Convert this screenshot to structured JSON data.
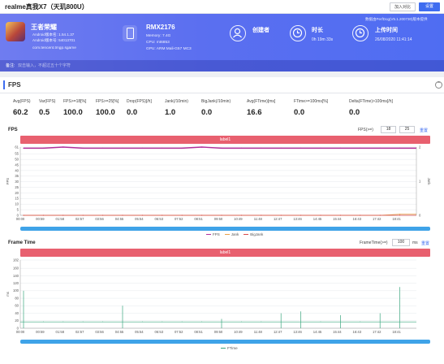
{
  "header": {
    "title": "realme真我X7（天玑800U）",
    "add_compare": "加入对比",
    "settings": "设置"
  },
  "app": {
    "name": "王者荣耀",
    "android_version": "Android版本名: 1.54.1.37",
    "android_code": "Android版本号: 54013701",
    "package": "com.tencent.tmgp.sgame"
  },
  "device": {
    "model": "RMX2176",
    "memory": "Memory: 7.4G",
    "cpu": "CPU: mt6853",
    "gpu": "GPU: ARM Mali-G57 MC3"
  },
  "creator": {
    "title": "创建者"
  },
  "duration": {
    "title": "时长",
    "value": "0h 19m 33s"
  },
  "upload": {
    "title": "上传时间",
    "value": "26/08/2020 11:41:14"
  },
  "report_version": "数据由PerfDog(V5.1.200730)版本提供",
  "remark": {
    "label": "备注:",
    "placeholder": "双击输入，不超过五十个字符"
  },
  "section": {
    "title": "FPS"
  },
  "metrics": [
    {
      "label": "Avg(FPS)",
      "value": "60.2"
    },
    {
      "label": "Var(FPS)",
      "value": "0.5"
    },
    {
      "label": "FPS>=18[%]",
      "value": "100.0"
    },
    {
      "label": "FPS>=25[%]",
      "value": "100.0"
    },
    {
      "label": "Drop(FPS)[/h]",
      "value": "0.0"
    },
    {
      "label": "Jank(/10min)",
      "value": "1.0"
    },
    {
      "label": "BigJank(/10min)",
      "value": "0.0"
    },
    {
      "label": "Avg(FTime)[ms]",
      "value": "16.6"
    },
    {
      "label": "FTime>=100ms[%]",
      "value": "0.0"
    },
    {
      "label": "Delta(FTime)>100ms[/h]",
      "value": "0.0"
    }
  ],
  "fps_chart": {
    "title": "FPS",
    "threshold_label": "FPS(>=)",
    "threshold_1": "18",
    "threshold_2": "25",
    "reset": "重置",
    "label_bar": "label1",
    "y_axis_label": "FPS",
    "y2_axis_label": "Jank",
    "legend": [
      "FPS",
      "Jank",
      "BigJank"
    ],
    "colors": {
      "fps": "#b0309c",
      "jank": "#e7a04a",
      "bigjank": "#d84a4a"
    }
  },
  "ft_chart": {
    "title": "Frame Time",
    "threshold_label": "FrameTime(>=)",
    "threshold_value": "100",
    "threshold_unit": "ms",
    "reset": "重置",
    "label_bar": "label1",
    "y_axis_label": "ms",
    "legend": [
      "FTime"
    ],
    "colors": {
      "ftime": "#3aa57e"
    }
  },
  "chart_data": [
    {
      "type": "line",
      "title": "FPS",
      "ylabel": "FPS",
      "ylim": [
        0,
        61
      ],
      "y_ticks": [
        0,
        5,
        10,
        15,
        20,
        25,
        30,
        35,
        40,
        45,
        50,
        55,
        61
      ],
      "y2label": "Jank",
      "y2lim": [
        0,
        2
      ],
      "y2_ticks": [
        0,
        1,
        2
      ],
      "x": [
        "00:00",
        "00:59",
        "01:58",
        "02:57",
        "03:56",
        "04:55",
        "05:54",
        "06:53",
        "07:52",
        "08:51",
        "09:50",
        "10:49",
        "11:48",
        "12:47",
        "13:46",
        "14:45",
        "15:44",
        "16:43",
        "17:42",
        "18:41"
      ],
      "series": [
        {
          "name": "FPS",
          "values": [
            60,
            60,
            61,
            60,
            60,
            60,
            60,
            60,
            60,
            61,
            60,
            60,
            60,
            60,
            60,
            60,
            60,
            60,
            60,
            60
          ]
        },
        {
          "name": "Jank",
          "values": [
            0,
            0,
            0,
            0,
            0,
            0,
            0,
            0,
            0,
            0,
            0,
            0,
            0,
            0,
            0,
            0,
            0,
            0,
            0,
            1
          ]
        },
        {
          "name": "BigJank",
          "values": [
            0,
            0,
            0,
            0,
            0,
            0,
            0,
            0,
            0,
            0,
            0,
            0,
            0,
            0,
            0,
            0,
            0,
            0,
            0,
            0
          ]
        }
      ],
      "legend_position": "bottom"
    },
    {
      "type": "line",
      "title": "Frame Time",
      "ylabel": "ms",
      "ylim": [
        0,
        182
      ],
      "y_ticks": [
        0,
        20,
        40,
        60,
        80,
        100,
        120,
        140,
        160,
        182
      ],
      "x": [
        "00:00",
        "00:59",
        "01:58",
        "02:57",
        "03:56",
        "04:55",
        "05:54",
        "06:53",
        "07:52",
        "08:51",
        "09:50",
        "10:49",
        "11:48",
        "12:47",
        "13:46",
        "14:45",
        "15:44",
        "16:43",
        "17:42",
        "18:41"
      ],
      "series": [
        {
          "name": "FTime",
          "values": [
            100,
            17,
            17,
            17,
            17,
            60,
            17,
            17,
            17,
            17,
            25,
            17,
            17,
            40,
            45,
            17,
            35,
            17,
            40,
            110
          ]
        }
      ],
      "legend_position": "bottom"
    }
  ]
}
